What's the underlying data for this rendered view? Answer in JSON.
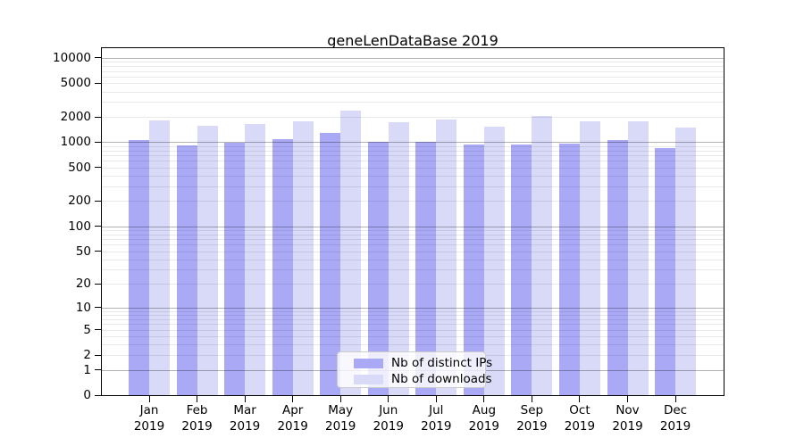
{
  "figure": {
    "background": "#ffffff",
    "frame_color": "#000000",
    "grid_major_color": "#b0b0b0",
    "grid_minor_color": "#ececec"
  },
  "chart_data": {
    "type": "bar",
    "title": "geneLenDataBase 2019",
    "categories": [
      "Jan",
      "Feb",
      "Mar",
      "Apr",
      "May",
      "Jun",
      "Jul",
      "Aug",
      "Sep",
      "Oct",
      "Nov",
      "Dec"
    ],
    "category_line2": "2019",
    "series": [
      {
        "name": "Nb of distinct IPs",
        "color": "#a9a9f6",
        "values": [
          1050,
          925,
          990,
          1090,
          1290,
          1010,
          1020,
          940,
          945,
          960,
          1050,
          860
        ]
      },
      {
        "name": "Nb of downloads",
        "color": "#d9d9f8",
        "values": [
          1800,
          1580,
          1640,
          1770,
          2350,
          1730,
          1870,
          1520,
          2030,
          1780,
          1780,
          1490
        ]
      }
    ],
    "xlabel": "",
    "ylabel": "",
    "y_scale": "log1p",
    "y_ticks": [
      0,
      1,
      2,
      5,
      10,
      20,
      50,
      100,
      200,
      500,
      1000,
      2000,
      5000,
      10000
    ],
    "ylim": [
      0,
      13300
    ],
    "grid": true,
    "legend_position": "lower center"
  }
}
